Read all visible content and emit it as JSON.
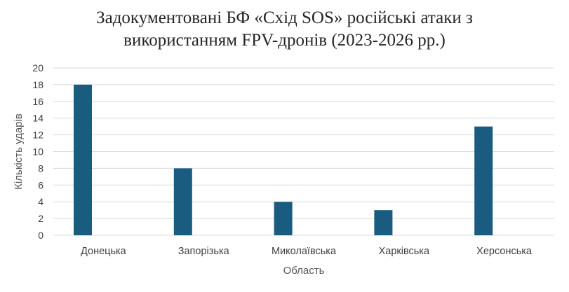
{
  "chart_data": {
    "type": "bar",
    "title_line1": "Задокументовані БФ «Схід SOS» російські атаки з",
    "title_line2": "використанням FPV-дронів (2023-2026 рр.)",
    "xlabel": "Область",
    "ylabel": "Кількість ударів",
    "categories": [
      "Донецька",
      "Запорізька",
      "Миколаївська",
      "Харківська",
      "Херсонська"
    ],
    "values": [
      18,
      8,
      4,
      3,
      13
    ],
    "ylim": [
      0,
      20
    ],
    "yticks": [
      0,
      2,
      4,
      6,
      8,
      10,
      12,
      14,
      16,
      18,
      20
    ],
    "grid": true,
    "bar_color": "#1a5c80",
    "grid_color": "#d9d9d9"
  }
}
